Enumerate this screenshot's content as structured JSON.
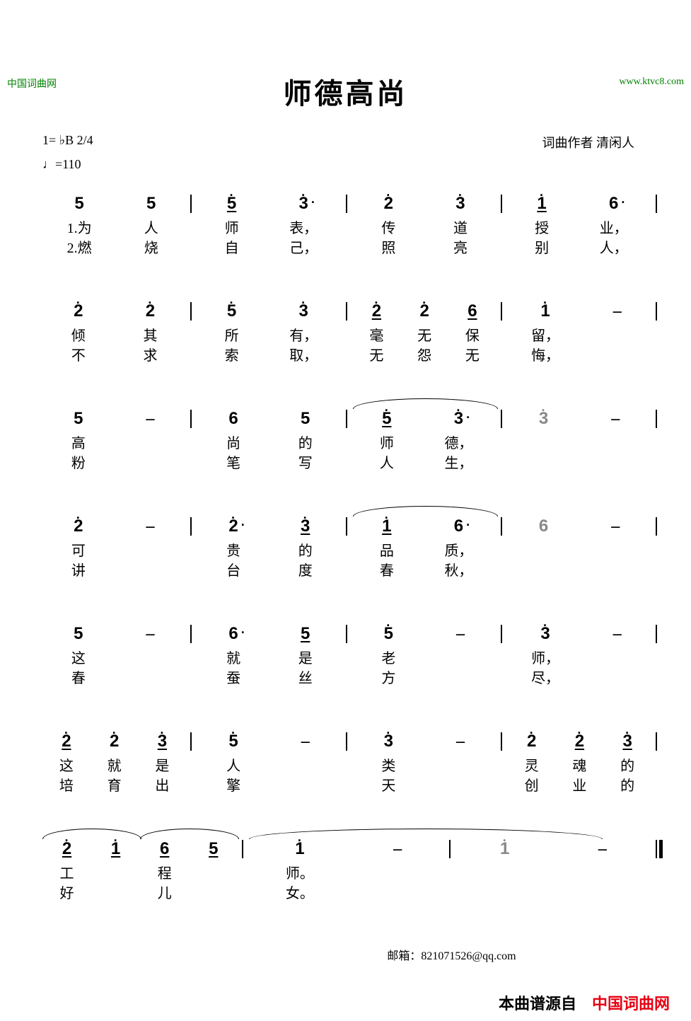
{
  "watermark_left": "中国词曲网",
  "watermark_right": "www.ktvc8.com",
  "title": "师德高尚",
  "key_signature": "1= ♭B 2/4",
  "tempo": "♩=110",
  "composer": "词曲作者 清闲人",
  "lines": [
    {
      "measures": [
        [
          {
            "n": "5",
            "l1": "1.为",
            "l2": "2.燃",
            "prefix": true
          },
          {
            "n": "5",
            "l1": "人",
            "l2": "烧"
          }
        ],
        [
          {
            "n": "5",
            "hi": true,
            "ul": true,
            "l1": "师",
            "l2": "自"
          },
          {
            "n": "3",
            "hi": true,
            "da": true,
            "l1": "表，",
            "l2": "己，"
          }
        ],
        [
          {
            "n": "2",
            "hi": true,
            "l1": "传",
            "l2": "照"
          },
          {
            "n": "3",
            "hi": true,
            "l1": "道",
            "l2": "亮"
          }
        ],
        [
          {
            "n": "1",
            "hi": true,
            "ul": true,
            "l1": "授",
            "l2": "别"
          },
          {
            "n": "6",
            "da": true,
            "l1": "业，",
            "l2": "人，"
          }
        ]
      ]
    },
    {
      "measures": [
        [
          {
            "n": "2",
            "hi": true,
            "l1": "倾",
            "l2": "不"
          },
          {
            "n": "2",
            "hi": true,
            "l1": "其",
            "l2": "求"
          }
        ],
        [
          {
            "n": "5",
            "hi": true,
            "l1": "所",
            "l2": "索"
          },
          {
            "n": "3",
            "hi": true,
            "l1": "有，",
            "l2": "取，"
          }
        ],
        [
          {
            "n": "2",
            "hi": true,
            "ul": true,
            "l1": "毫",
            "l2": "无"
          },
          {
            "n": "2",
            "hi": true,
            "l1": "无",
            "l2": "怨"
          },
          {
            "n": "6",
            "ul": true,
            "l1": "保",
            "l2": "无"
          }
        ],
        [
          {
            "n": "1",
            "hi": true,
            "l1": "留，",
            "l2": "悔，"
          },
          {
            "n": "–",
            "dash": true
          }
        ]
      ]
    },
    {
      "measures": [
        [
          {
            "n": "5",
            "l1": "高",
            "l2": "粉"
          },
          {
            "n": "–",
            "dash": true
          }
        ],
        [
          {
            "n": "6",
            "l1": "尚",
            "l2": "笔"
          },
          {
            "n": "5",
            "l1": "的",
            "l2": "写"
          }
        ],
        [
          {
            "slur": [
              {
                "n": "5",
                "hi": true,
                "ul": true,
                "l1": "师",
                "l2": "人"
              },
              {
                "n": "3",
                "hi": true,
                "da": true,
                "l1": "德，",
                "l2": "生，"
              }
            ]
          }
        ],
        [
          {
            "n": "3",
            "hi": true,
            "grey": true
          },
          {
            "n": "–",
            "dash": true
          }
        ]
      ]
    },
    {
      "measures": [
        [
          {
            "n": "2",
            "hi": true,
            "l1": "可",
            "l2": "讲"
          },
          {
            "n": "–",
            "dash": true
          }
        ],
        [
          {
            "n": "2",
            "hi": true,
            "da": true,
            "l1": "贵",
            "l2": "台"
          },
          {
            "n": "3",
            "hi": true,
            "ul": true,
            "l1": "的",
            "l2": "度"
          }
        ],
        [
          {
            "slur": [
              {
                "n": "1",
                "hi": true,
                "ul": true,
                "l1": "品",
                "l2": "春"
              },
              {
                "n": "6",
                "da": true,
                "l1": "质，",
                "l2": "秋，"
              }
            ]
          }
        ],
        [
          {
            "n": "6",
            "grey": true
          },
          {
            "n": "–",
            "dash": true
          }
        ]
      ]
    },
    {
      "measures": [
        [
          {
            "n": "5",
            "l1": "这",
            "l2": "春"
          },
          {
            "n": "–",
            "dash": true
          }
        ],
        [
          {
            "n": "6",
            "da": true,
            "l1": "就",
            "l2": "蚕"
          },
          {
            "n": "5",
            "ul": true,
            "l1": "是",
            "l2": "丝"
          }
        ],
        [
          {
            "n": "5",
            "hi": true,
            "l1": "老",
            "l2": "方"
          },
          {
            "n": "–",
            "dash": true
          }
        ],
        [
          {
            "n": "3",
            "hi": true,
            "l1": "师，",
            "l2": "尽，"
          },
          {
            "n": "–",
            "dash": true
          }
        ]
      ]
    },
    {
      "measures": [
        [
          {
            "n": "2",
            "hi": true,
            "ul": true,
            "l1": "这",
            "l2": "培"
          },
          {
            "n": "2",
            "hi": true,
            "l1": "就",
            "l2": "育"
          },
          {
            "n": "3",
            "hi": true,
            "ul": true,
            "l1": "是",
            "l2": "出"
          }
        ],
        [
          {
            "n": "5",
            "hi": true,
            "l1": "人",
            "l2": "擎"
          },
          {
            "n": "–",
            "dash": true
          }
        ],
        [
          {
            "n": "3",
            "hi": true,
            "l1": "类",
            "l2": "天"
          },
          {
            "n": "–",
            "dash": true
          }
        ],
        [
          {
            "n": "2",
            "hi": true,
            "l1": "灵",
            "l2": "创"
          },
          {
            "n": "2",
            "hi": true,
            "ul": true,
            "l1": "魂",
            "l2": "业"
          },
          {
            "n": "3",
            "hi": true,
            "ul": true,
            "l1": "的",
            "l2": "的"
          }
        ]
      ]
    },
    {
      "end": true,
      "measures": [
        [
          {
            "slur": [
              {
                "n": "2",
                "hi": true,
                "ul": true,
                "l1": "工",
                "l2": "好"
              },
              {
                "n": "1",
                "hi": true,
                "ul": true
              }
            ]
          },
          {
            "slur": [
              {
                "n": "6",
                "ul": true,
                "l1": "程",
                "l2": "儿"
              },
              {
                "n": "5",
                "ul": true
              }
            ]
          }
        ],
        [
          {
            "bigslur": true,
            "cells": [
              {
                "n": "1",
                "hi": true,
                "l1": "师。",
                "l2": "女。"
              },
              {
                "n": "–",
                "dash": true
              }
            ]
          }
        ],
        [
          {
            "n": "1",
            "hi": true,
            "grey": true
          },
          {
            "n": "–",
            "dash": true
          }
        ]
      ]
    }
  ],
  "email": "邮箱：821071526@qq.com",
  "source_prefix": "本曲谱源自",
  "source_site": "中国词曲网"
}
